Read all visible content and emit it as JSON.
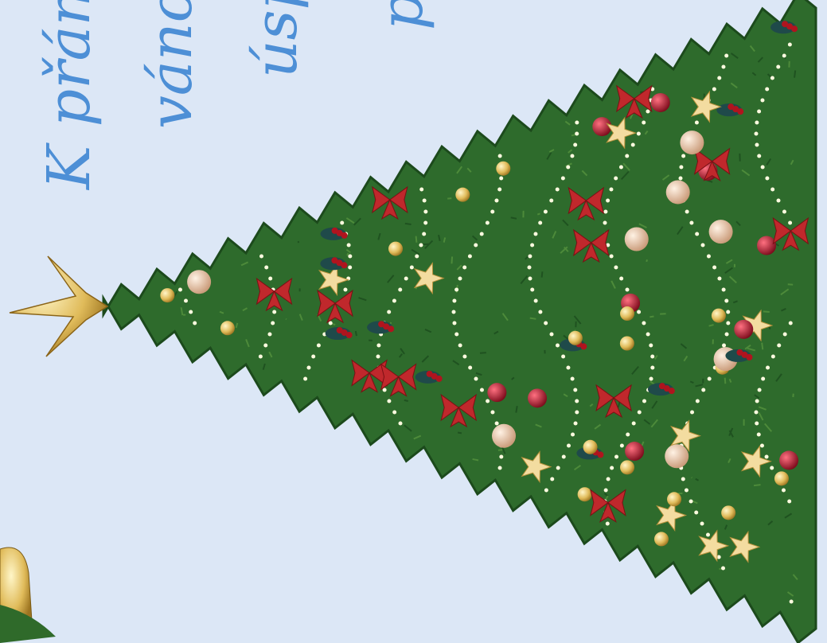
{
  "card": {
    "lines": [
      "K přání p",
      "vánočn",
      "úsp",
      "p"
    ]
  }
}
